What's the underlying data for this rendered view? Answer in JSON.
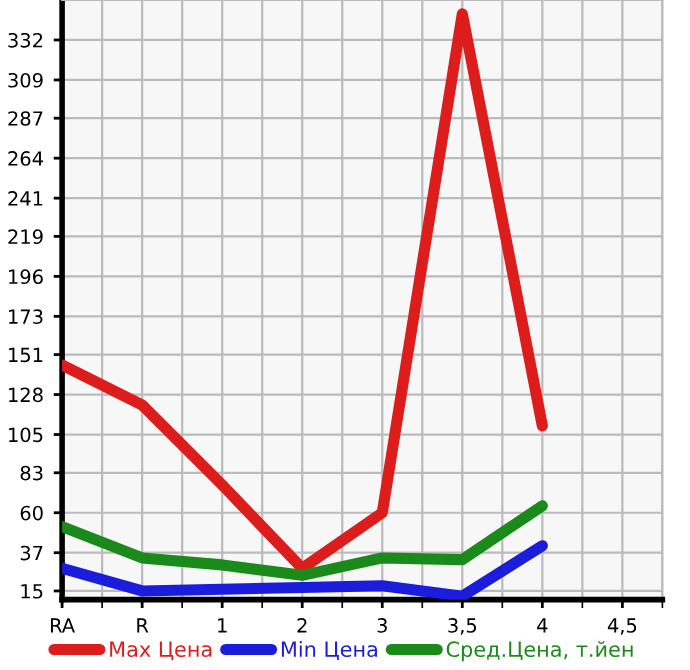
{
  "chart_data": {
    "type": "line",
    "categories": [
      "RA",
      "R",
      "1",
      "2",
      "3",
      "3,5",
      "4",
      "4,5"
    ],
    "series": [
      {
        "name": "Max Цена",
        "color": "#dd1c1c",
        "values": [
          145,
          122,
          76,
          28,
          60,
          347,
          110,
          null
        ]
      },
      {
        "name": "Min Цена",
        "color": "#1c1cdd",
        "values": [
          28,
          15,
          16,
          17,
          18,
          12,
          41,
          null
        ]
      },
      {
        "name": "Сред.Цена, т.йен",
        "color": "#1a8a1a",
        "values": [
          52,
          34,
          30,
          24,
          34,
          33,
          64,
          null
        ]
      }
    ],
    "ylim": [
      10,
      355
    ],
    "yticks": [
      15,
      37,
      60,
      83,
      105,
      128,
      151,
      173,
      196,
      219,
      241,
      264,
      287,
      309,
      332
    ],
    "grid": true,
    "legend": "bottom",
    "marker": "none",
    "line_style": "solid"
  }
}
